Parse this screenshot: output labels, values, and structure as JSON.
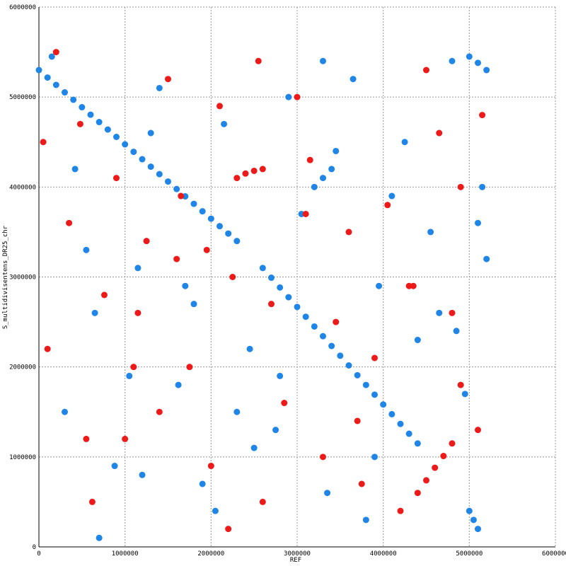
{
  "chart_data": {
    "type": "scatter",
    "x_label": "REF",
    "y_label": "S_multidivisentens_DR25_chr",
    "xlim": [
      0,
      6000000
    ],
    "ylim": [
      0,
      6000000
    ],
    "xticks": [
      0,
      1000000,
      2000000,
      3000000,
      4000000,
      5000000,
      6000000
    ],
    "yticks": [
      0,
      1000000,
      2000000,
      3000000,
      4000000,
      5000000,
      6000000
    ],
    "grid": true,
    "series": [
      {
        "color": "#1f85e6",
        "x": [
          0,
          100000,
          200000,
          300000,
          400000,
          500000,
          600000,
          700000,
          800000,
          900000,
          1000000,
          1100000,
          1200000,
          1300000,
          1400000,
          1500000,
          1600000,
          1700000,
          1800000,
          1900000,
          2000000,
          2100000,
          2200000,
          2300000,
          2600000,
          2700000,
          2800000,
          2900000,
          3000000,
          3100000,
          3200000,
          3300000,
          3400000,
          3500000,
          3600000,
          3700000,
          3800000,
          3900000,
          4000000,
          4100000,
          4200000,
          4300000,
          4400000,
          5000000,
          5050000,
          5100000,
          5000000,
          5100000,
          5200000,
          3200000,
          3300000,
          3400000,
          150000,
          420000,
          650000,
          880000,
          1150000,
          1400000,
          1620000,
          1900000,
          2150000,
          2450000,
          2750000,
          3050000,
          3350000,
          3650000,
          3950000,
          4250000,
          4550000,
          4850000,
          5150000,
          300000,
          550000,
          1050000,
          1300000,
          1800000,
          2050000,
          2500000,
          2900000,
          3450000,
          3800000,
          4100000,
          4650000,
          4950000,
          5200000,
          700000,
          1200000,
          1700000,
          2300000,
          2800000,
          3300000,
          3900000,
          4400000,
          4800000,
          5100000
        ],
        "y": [
          5300000,
          5217000,
          5135000,
          5052000,
          4970000,
          4887000,
          4804000,
          4722000,
          4639000,
          4557000,
          4474000,
          4391000,
          4309000,
          4226000,
          4143000,
          4061000,
          3978000,
          3896000,
          3813000,
          3730000,
          3648000,
          3565000,
          3483000,
          3400000,
          3100000,
          2992000,
          2883000,
          2775000,
          2667000,
          2558000,
          2450000,
          2342000,
          2233000,
          2125000,
          2017000,
          1908000,
          1800000,
          1692000,
          1583000,
          1475000,
          1367000,
          1258000,
          1150000,
          400000,
          300000,
          200000,
          5450000,
          5380000,
          5300000,
          4000000,
          4100000,
          4200000,
          5450000,
          4200000,
          2600000,
          900000,
          3100000,
          5100000,
          1800000,
          700000,
          4700000,
          2200000,
          1300000,
          3700000,
          600000,
          5200000,
          2900000,
          4500000,
          3500000,
          2400000,
          4000000,
          1500000,
          3300000,
          1900000,
          4600000,
          2700000,
          400000,
          1100000,
          5000000,
          4400000,
          300000,
          3900000,
          2600000,
          1700000,
          3200000,
          100000,
          800000,
          2900000,
          1500000,
          1900000,
          5400000,
          1000000,
          2300000,
          5400000,
          3600000
        ]
      },
      {
        "color": "#ee1a1a",
        "x": [
          4400000,
          4500000,
          4600000,
          4700000,
          4800000,
          2300000,
          2400000,
          2500000,
          2600000,
          200000,
          480000,
          760000,
          1000000,
          1250000,
          1500000,
          1750000,
          2000000,
          2250000,
          2550000,
          2850000,
          3150000,
          3450000,
          3750000,
          4050000,
          4350000,
          4650000,
          4900000,
          5150000,
          100000,
          350000,
          620000,
          900000,
          1150000,
          1400000,
          1650000,
          1950000,
          2200000,
          2700000,
          3000000,
          3300000,
          3600000,
          3900000,
          4200000,
          4500000,
          4800000,
          5100000,
          50000,
          550000,
          1100000,
          1600000,
          2100000,
          2600000,
          3100000,
          3700000,
          4300000,
          4900000
        ],
        "y": [
          600000,
          740000,
          880000,
          1010000,
          1150000,
          4100000,
          4150000,
          4180000,
          4200000,
          5500000,
          4700000,
          2800000,
          1200000,
          3400000,
          5200000,
          2000000,
          900000,
          3000000,
          5400000,
          1600000,
          4300000,
          2500000,
          700000,
          3800000,
          2900000,
          4600000,
          1800000,
          4800000,
          2200000,
          3600000,
          500000,
          4100000,
          2600000,
          1500000,
          3900000,
          3300000,
          200000,
          2700000,
          5000000,
          1000000,
          3500000,
          2100000,
          400000,
          5300000,
          2600000,
          1300000,
          4500000,
          1200000,
          2000000,
          3200000,
          4900000,
          500000,
          3700000,
          1400000,
          2900000,
          4000000
        ]
      }
    ]
  }
}
